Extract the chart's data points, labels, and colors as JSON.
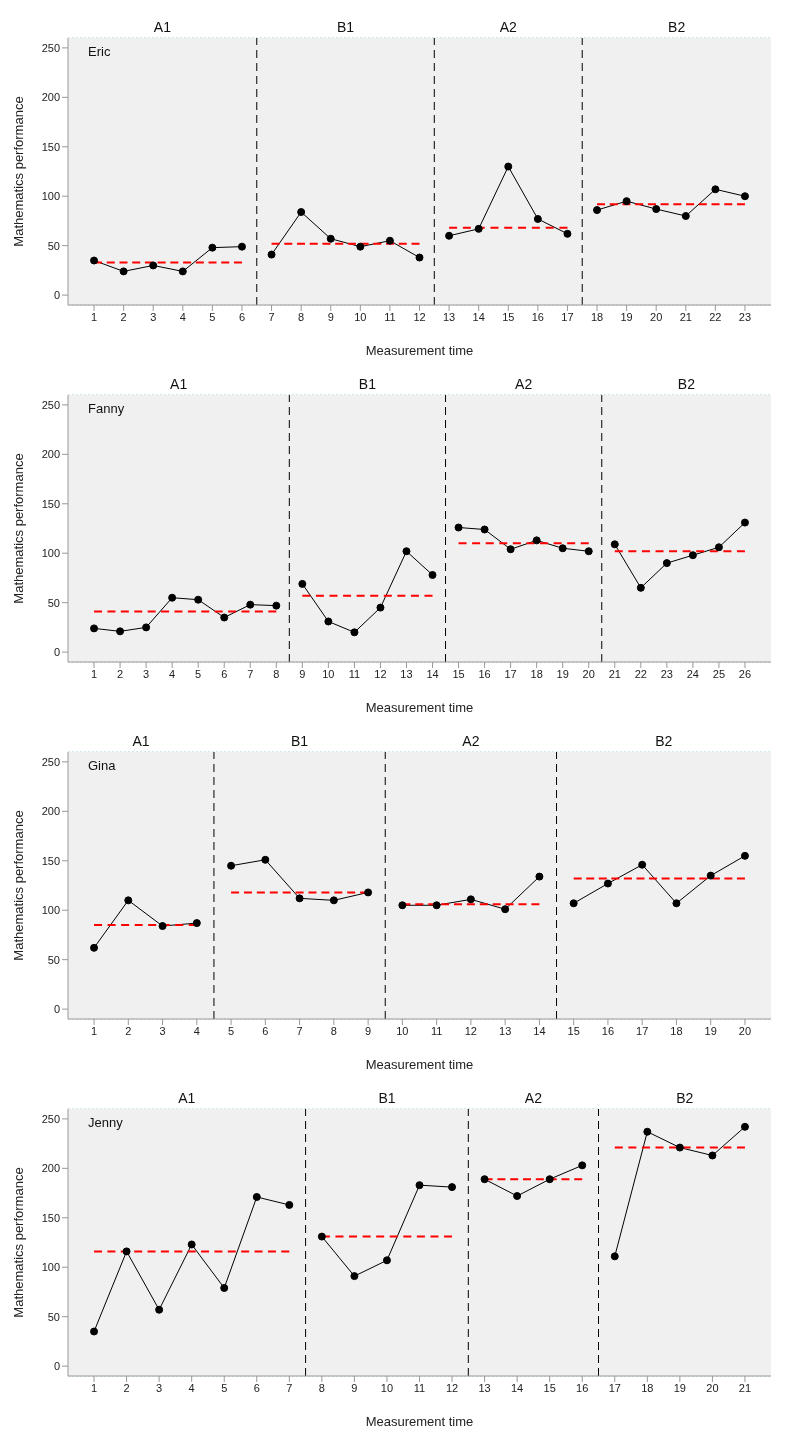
{
  "chart_data": [
    {
      "type": "line",
      "title": "Eric",
      "xlabel": "Measurement time",
      "ylabel": "Mathematics performance",
      "xlim": [
        0.12,
        23.88
      ],
      "xticks": [
        1,
        2,
        3,
        4,
        5,
        6,
        7,
        8,
        9,
        10,
        11,
        12,
        13,
        14,
        15,
        16,
        17,
        18,
        19,
        20,
        21,
        22,
        23
      ],
      "ylim": [
        -10,
        260
      ],
      "yticks": [
        0,
        50,
        100,
        150,
        200,
        250
      ],
      "grid": true,
      "series": [
        {
          "color": "#000000",
          "marker": "circle",
          "x": [
            1,
            2,
            3,
            4,
            5,
            6
          ],
          "values": [
            35,
            24,
            30,
            24,
            48,
            49
          ]
        },
        {
          "color": "#000000",
          "marker": "circle",
          "x": [
            7,
            8,
            9,
            10,
            11,
            12
          ],
          "values": [
            41,
            84,
            57,
            49,
            55,
            38
          ]
        },
        {
          "color": "#000000",
          "marker": "circle",
          "x": [
            13,
            14,
            15,
            16,
            17
          ],
          "values": [
            60,
            67,
            130,
            77,
            62
          ]
        },
        {
          "color": "#000000",
          "marker": "circle",
          "x": [
            18,
            19,
            20,
            21,
            22,
            23
          ],
          "values": [
            86,
            95,
            87,
            80,
            107,
            100
          ]
        },
        {
          "type": "line",
          "color": "#ff0000",
          "line_style": "dashed",
          "marker": "none",
          "x": [
            1,
            6
          ],
          "values": [
            33,
            33
          ]
        },
        {
          "type": "line",
          "color": "#ff0000",
          "line_style": "dashed",
          "marker": "none",
          "x": [
            7,
            12
          ],
          "values": [
            52,
            52
          ]
        },
        {
          "type": "line",
          "color": "#ff0000",
          "line_style": "dashed",
          "marker": "none",
          "x": [
            13,
            17
          ],
          "values": [
            68,
            68
          ]
        },
        {
          "type": "line",
          "color": "#ff0000",
          "line_style": "dashed",
          "marker": "none",
          "x": [
            18,
            23
          ],
          "values": [
            92,
            92
          ]
        }
      ],
      "ref_lines": [
        {
          "axis": "x",
          "value": 6.5,
          "color": "#000000",
          "line_style": "dashed"
        },
        {
          "axis": "x",
          "value": 12.5,
          "color": "#000000",
          "line_style": "dashed"
        },
        {
          "axis": "x",
          "value": 17.5,
          "color": "#000000",
          "line_style": "dashed"
        }
      ],
      "bands": [
        {
          "axis": "x",
          "from": 0.12,
          "to": 6.5,
          "label": "A1",
          "color": "#f0f0f0"
        },
        {
          "axis": "x",
          "from": 6.5,
          "to": 12.5,
          "label": "B1",
          "color": "#f0f0f0"
        },
        {
          "axis": "x",
          "from": 12.5,
          "to": 17.5,
          "label": "A2",
          "color": "#f0f0f0"
        },
        {
          "axis": "x",
          "from": 17.5,
          "to": 23.88,
          "label": "B2",
          "color": "#f0f0f0"
        }
      ]
    },
    {
      "type": "line",
      "title": "Fanny",
      "xlabel": "Measurement time",
      "ylabel": "Mathematics performance",
      "xlim": [
        0,
        27
      ],
      "xticks": [
        1,
        2,
        3,
        4,
        5,
        6,
        7,
        8,
        9,
        10,
        11,
        12,
        13,
        14,
        15,
        16,
        17,
        18,
        19,
        20,
        21,
        22,
        23,
        24,
        25,
        26
      ],
      "ylim": [
        -10,
        260
      ],
      "yticks": [
        0,
        50,
        100,
        150,
        200,
        250
      ],
      "grid": true,
      "series": [
        {
          "color": "#000000",
          "marker": "circle",
          "x": [
            1,
            2,
            3,
            4,
            5,
            6,
            7,
            8
          ],
          "values": [
            24,
            21,
            25,
            55,
            53,
            35,
            48,
            47
          ]
        },
        {
          "color": "#000000",
          "marker": "circle",
          "x": [
            9,
            10,
            11,
            12,
            13,
            14
          ],
          "values": [
            69,
            31,
            20,
            45,
            102,
            78
          ]
        },
        {
          "color": "#000000",
          "marker": "circle",
          "x": [
            15,
            16,
            17,
            18,
            19,
            20
          ],
          "values": [
            126,
            124,
            104,
            113,
            105,
            102
          ]
        },
        {
          "color": "#000000",
          "marker": "circle",
          "x": [
            21,
            22,
            23,
            24,
            25,
            26
          ],
          "values": [
            109,
            65,
            90,
            98,
            106,
            131
          ]
        },
        {
          "type": "line",
          "color": "#ff0000",
          "line_style": "dashed",
          "marker": "none",
          "x": [
            1,
            8
          ],
          "values": [
            41,
            41
          ]
        },
        {
          "type": "line",
          "color": "#ff0000",
          "line_style": "dashed",
          "marker": "none",
          "x": [
            9,
            14
          ],
          "values": [
            57,
            57
          ]
        },
        {
          "type": "line",
          "color": "#ff0000",
          "line_style": "dashed",
          "marker": "none",
          "x": [
            15,
            20
          ],
          "values": [
            110,
            110
          ]
        },
        {
          "type": "line",
          "color": "#ff0000",
          "line_style": "dashed",
          "marker": "none",
          "x": [
            21,
            26
          ],
          "values": [
            102,
            102
          ]
        }
      ],
      "ref_lines": [
        {
          "axis": "x",
          "value": 8.5,
          "color": "#000000",
          "line_style": "dashed"
        },
        {
          "axis": "x",
          "value": 14.5,
          "color": "#000000",
          "line_style": "dashed"
        },
        {
          "axis": "x",
          "value": 20.5,
          "color": "#000000",
          "line_style": "dashed"
        }
      ],
      "bands": [
        {
          "axis": "x",
          "from": 0,
          "to": 8.5,
          "label": "A1",
          "color": "#f0f0f0"
        },
        {
          "axis": "x",
          "from": 8.5,
          "to": 14.5,
          "label": "B1",
          "color": "#f0f0f0"
        },
        {
          "axis": "x",
          "from": 14.5,
          "to": 20.5,
          "label": "A2",
          "color": "#f0f0f0"
        },
        {
          "axis": "x",
          "from": 20.5,
          "to": 27,
          "label": "B2",
          "color": "#f0f0f0"
        }
      ]
    },
    {
      "type": "line",
      "title": "Gina",
      "xlabel": "Measurement time",
      "ylabel": "Mathematics performance",
      "xlim": [
        0.24,
        20.76
      ],
      "xticks": [
        1,
        2,
        3,
        4,
        5,
        6,
        7,
        8,
        9,
        10,
        11,
        12,
        13,
        14,
        15,
        16,
        17,
        18,
        19,
        20
      ],
      "ylim": [
        -10,
        260
      ],
      "yticks": [
        0,
        50,
        100,
        150,
        200,
        250
      ],
      "grid": true,
      "series": [
        {
          "color": "#000000",
          "marker": "circle",
          "x": [
            1,
            2,
            3,
            4
          ],
          "values": [
            62,
            110,
            84,
            87
          ]
        },
        {
          "color": "#000000",
          "marker": "circle",
          "x": [
            5,
            6,
            7,
            8,
            9
          ],
          "values": [
            145,
            151,
            112,
            110,
            118
          ]
        },
        {
          "color": "#000000",
          "marker": "circle",
          "x": [
            10,
            11,
            12,
            13,
            14
          ],
          "values": [
            105,
            105,
            111,
            101,
            134
          ]
        },
        {
          "color": "#000000",
          "marker": "circle",
          "x": [
            15,
            16,
            17,
            18,
            19,
            20
          ],
          "values": [
            107,
            127,
            146,
            107,
            135,
            155
          ]
        },
        {
          "type": "line",
          "color": "#ff0000",
          "line_style": "dashed",
          "marker": "none",
          "x": [
            1,
            4
          ],
          "values": [
            85,
            85
          ]
        },
        {
          "type": "line",
          "color": "#ff0000",
          "line_style": "dashed",
          "marker": "none",
          "x": [
            5,
            9
          ],
          "values": [
            118,
            118
          ]
        },
        {
          "type": "line",
          "color": "#ff0000",
          "line_style": "dashed",
          "marker": "none",
          "x": [
            10,
            14
          ],
          "values": [
            106,
            106
          ]
        },
        {
          "type": "line",
          "color": "#ff0000",
          "line_style": "dashed",
          "marker": "none",
          "x": [
            15,
            20
          ],
          "values": [
            132,
            132
          ]
        }
      ],
      "ref_lines": [
        {
          "axis": "x",
          "value": 4.5,
          "color": "#000000",
          "line_style": "dashed"
        },
        {
          "axis": "x",
          "value": 9.5,
          "color": "#000000",
          "line_style": "dashed"
        },
        {
          "axis": "x",
          "value": 14.5,
          "color": "#000000",
          "line_style": "dashed"
        }
      ],
      "bands": [
        {
          "axis": "x",
          "from": 0.24,
          "to": 4.5,
          "label": "A1",
          "color": "#f0f0f0"
        },
        {
          "axis": "x",
          "from": 4.5,
          "to": 9.5,
          "label": "B1",
          "color": "#f0f0f0"
        },
        {
          "axis": "x",
          "from": 9.5,
          "to": 14.5,
          "label": "A2",
          "color": "#f0f0f0"
        },
        {
          "axis": "x",
          "from": 14.5,
          "to": 20.76,
          "label": "B2",
          "color": "#f0f0f0"
        }
      ]
    },
    {
      "type": "line",
      "title": "Jenny",
      "xlabel": "Measurement time",
      "ylabel": "Mathematics performance",
      "xlim": [
        0.2,
        21.8
      ],
      "xticks": [
        1,
        2,
        3,
        4,
        5,
        6,
        7,
        8,
        9,
        10,
        11,
        12,
        13,
        14,
        15,
        16,
        17,
        18,
        19,
        20,
        21
      ],
      "ylim": [
        -10,
        260
      ],
      "yticks": [
        0,
        50,
        100,
        150,
        200,
        250
      ],
      "grid": true,
      "series": [
        {
          "color": "#000000",
          "marker": "circle",
          "x": [
            1,
            2,
            3,
            4,
            5,
            6,
            7
          ],
          "values": [
            35,
            116,
            57,
            123,
            79,
            171,
            163
          ]
        },
        {
          "color": "#000000",
          "marker": "circle",
          "x": [
            8,
            9,
            10,
            11,
            12
          ],
          "values": [
            131,
            91,
            107,
            183,
            181
          ]
        },
        {
          "color": "#000000",
          "marker": "circle",
          "x": [
            13,
            14,
            15,
            16
          ],
          "values": [
            189,
            172,
            189,
            203
          ]
        },
        {
          "color": "#000000",
          "marker": "circle",
          "x": [
            17,
            18,
            19,
            20,
            21
          ],
          "values": [
            111,
            237,
            221,
            213,
            242
          ]
        },
        {
          "type": "line",
          "color": "#ff0000",
          "line_style": "dashed",
          "marker": "none",
          "x": [
            1,
            7
          ],
          "values": [
            116,
            116
          ]
        },
        {
          "type": "line",
          "color": "#ff0000",
          "line_style": "dashed",
          "marker": "none",
          "x": [
            8,
            12
          ],
          "values": [
            131,
            131
          ]
        },
        {
          "type": "line",
          "color": "#ff0000",
          "line_style": "dashed",
          "marker": "none",
          "x": [
            13,
            16
          ],
          "values": [
            189,
            189
          ]
        },
        {
          "type": "line",
          "color": "#ff0000",
          "line_style": "dashed",
          "marker": "none",
          "x": [
            17,
            21
          ],
          "values": [
            221,
            221
          ]
        }
      ],
      "ref_lines": [
        {
          "axis": "x",
          "value": 7.5,
          "color": "#000000",
          "line_style": "dashed"
        },
        {
          "axis": "x",
          "value": 12.5,
          "color": "#000000",
          "line_style": "dashed"
        },
        {
          "axis": "x",
          "value": 16.5,
          "color": "#000000",
          "line_style": "dashed"
        }
      ],
      "bands": [
        {
          "axis": "x",
          "from": 0.2,
          "to": 7.5,
          "label": "A1",
          "color": "#f0f0f0"
        },
        {
          "axis": "x",
          "from": 7.5,
          "to": 12.5,
          "label": "B1",
          "color": "#f0f0f0"
        },
        {
          "axis": "x",
          "from": 12.5,
          "to": 16.5,
          "label": "A2",
          "color": "#f0f0f0"
        },
        {
          "axis": "x",
          "from": 16.5,
          "to": 21.8,
          "label": "B2",
          "color": "#f0f0f0"
        }
      ]
    }
  ]
}
